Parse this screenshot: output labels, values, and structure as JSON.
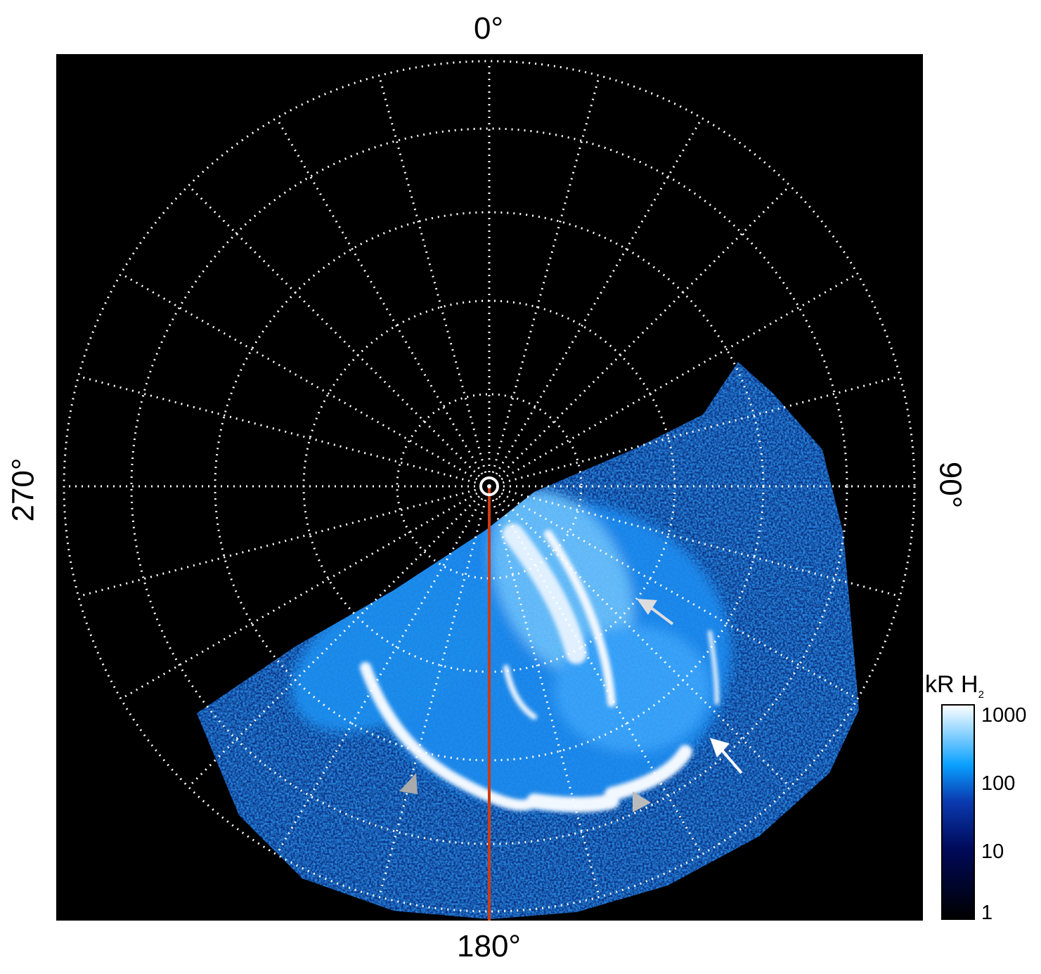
{
  "figure": {
    "projection": "polar",
    "longitude_labels": {
      "top": "0°",
      "right": "90°",
      "bottom": "180°",
      "left": "270°"
    },
    "grid": {
      "style": "dotted",
      "color": "#ffffff",
      "meridian_step_deg": 15,
      "latitude_circles": 5
    },
    "reference_line_color": "#d03a10",
    "background": "#000000"
  },
  "colorbar": {
    "label": "kR H",
    "label_subscript": "2",
    "scale": "log",
    "ticks": [
      "1000",
      "100",
      "10",
      "1"
    ],
    "colors": [
      "#000000",
      "#000a5a",
      "#0a3ab0",
      "#0aa0ff",
      "#ffffff"
    ]
  },
  "annotations": {
    "white_arrows": 2,
    "gray_arrowheads": 3
  }
}
